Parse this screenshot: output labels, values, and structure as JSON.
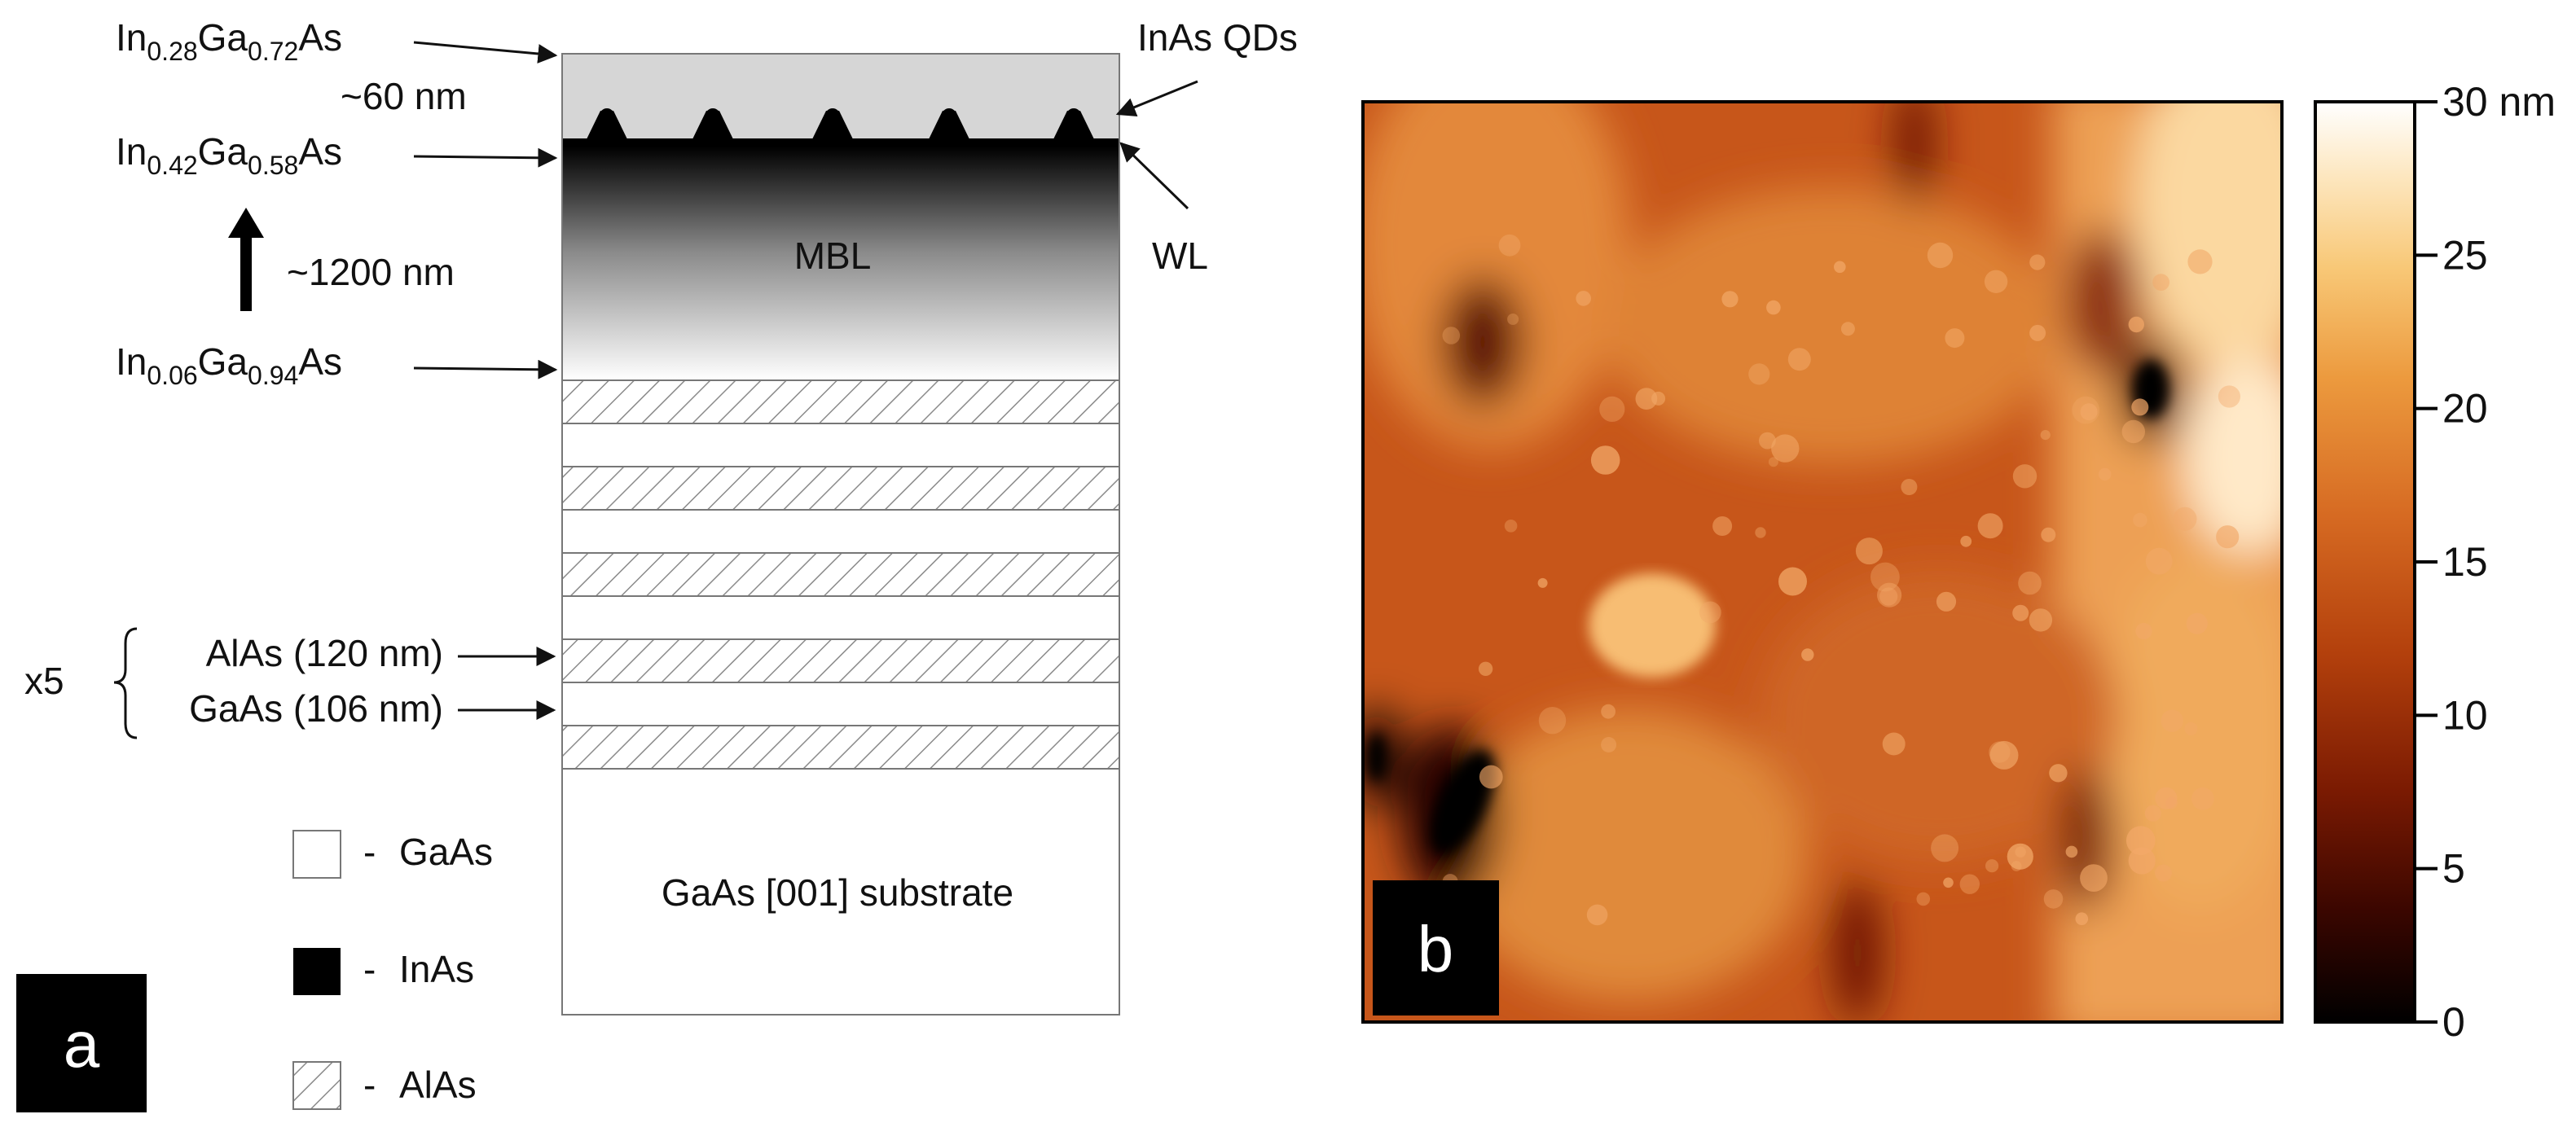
{
  "panel_a": {
    "letter": "a",
    "top_cap": {
      "p1": "In",
      "x1": "0.28",
      "p2": "Ga",
      "x2": "0.72",
      "p3": "As"
    },
    "thickness_top": "~60 nm",
    "mbl_top": {
      "p1": "In",
      "x1": "0.42",
      "p2": "Ga",
      "x2": "0.58",
      "p3": "As"
    },
    "thickness_mbl": "~1200 nm",
    "mbl_bottom": {
      "p1": "In",
      "x1": "0.06",
      "p2": "Ga",
      "x2": "0.94",
      "p3": "As"
    },
    "qd_label": "InAs QDs",
    "wl_label": "WL",
    "mbl_label": "MBL",
    "repeat": "x5",
    "alas_layer": "AlAs (120 nm)",
    "gaas_layer": "GaAs (106 nm)",
    "substrate": "GaAs [001] substrate",
    "qd_count": 5,
    "superlattice_periods": 5,
    "legend": [
      {
        "swatch": "white",
        "label": "GaAs"
      },
      {
        "swatch": "black",
        "label": "InAs"
      },
      {
        "swatch": "hatched",
        "label": "AlAs"
      }
    ],
    "legend_dash": "-"
  },
  "panel_b": {
    "letter": "b",
    "colorbar_ticks": [
      "30 nm",
      "25",
      "20",
      "15",
      "10",
      "5",
      "0"
    ],
    "colormap": [
      "#000000",
      "#3a0600",
      "#7a1a02",
      "#b3400c",
      "#d66a22",
      "#ec9a3e",
      "#f8c877",
      "#fde7c0",
      "#ffffff"
    ]
  }
}
